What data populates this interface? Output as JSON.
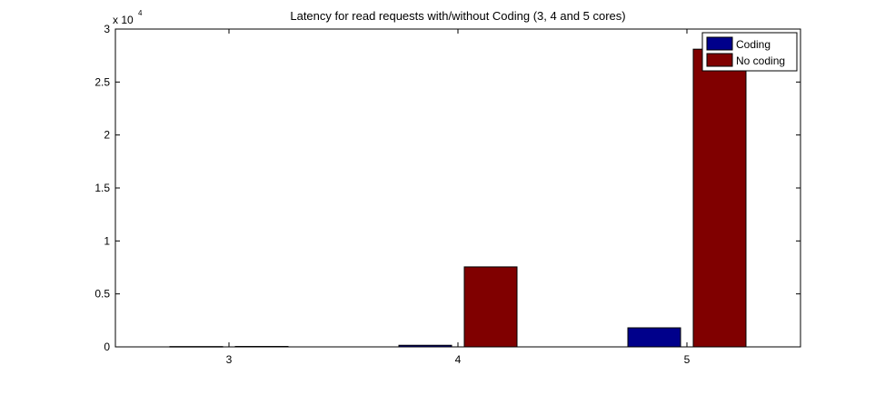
{
  "chart_data": {
    "type": "bar",
    "title": "Latency for read requests with/without Coding (3, 4 and 5 cores)",
    "xlabel": "",
    "ylabel": "",
    "categories": [
      "3",
      "4",
      "5"
    ],
    "series": [
      {
        "name": "Coding",
        "color": "#00008B",
        "values": [
          30,
          150,
          1800
        ]
      },
      {
        "name": "No coding",
        "color": "#800000",
        "values": [
          40,
          7550,
          28100
        ]
      }
    ],
    "ylim": [
      0,
      30000
    ],
    "yticks": [
      0,
      5000,
      10000,
      15000,
      20000,
      25000,
      30000
    ],
    "ytick_labels": [
      "0",
      "0.5",
      "1",
      "1.5",
      "2",
      "2.5",
      "3"
    ],
    "y_exponent_label": {
      "base": "x 10",
      "exp": "4"
    },
    "legend_position": "top-right",
    "grid": false
  }
}
